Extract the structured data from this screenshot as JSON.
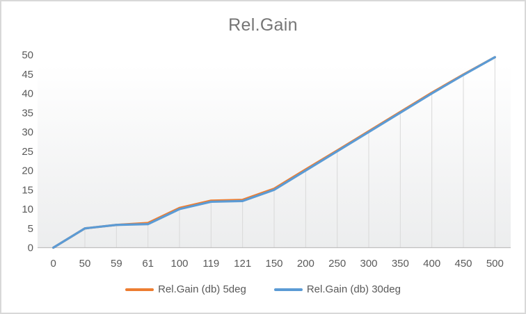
{
  "chart_title": "Rel.Gain",
  "chart_data": {
    "type": "line",
    "title": "Rel.Gain",
    "categories": [
      "0",
      "50",
      "59",
      "61",
      "100",
      "119",
      "121",
      "150",
      "200",
      "250",
      "300",
      "350",
      "400",
      "450",
      "500"
    ],
    "series": [
      {
        "name": "Rel.Gain (db) 5deg",
        "color": "#ED7D31",
        "values": [
          0,
          5,
          5.9,
          6.4,
          10.3,
          12.2,
          12.4,
          15.3,
          20.3,
          25.2,
          30.2,
          35.2,
          40.2,
          44.9,
          49.4
        ]
      },
      {
        "name": "Rel.Gain (db) 30deg",
        "color": "#5B9BD5",
        "values": [
          0,
          5,
          5.9,
          6.1,
          10.0,
          11.9,
          12.1,
          15.0,
          20.0,
          25.0,
          30.0,
          35.0,
          40.0,
          44.8,
          49.4
        ]
      }
    ],
    "ylim": [
      0,
      50
    ],
    "yticks": [
      0,
      5,
      10,
      15,
      20,
      25,
      30,
      35,
      40,
      45,
      50
    ],
    "grid": "vertical-drop-lines",
    "legend_position": "bottom",
    "xlabel": "",
    "ylabel": ""
  },
  "style": {
    "title_color": "#757575",
    "axis_text_color": "#595959",
    "drop_line_color": "#D9D9D9",
    "axis_line_color": "#BFBFBF",
    "frame_border_color": "#D8D8D8",
    "plot_gradient_top": "#FFFFFF",
    "plot_gradient_bottom": "#ECEDEE"
  }
}
